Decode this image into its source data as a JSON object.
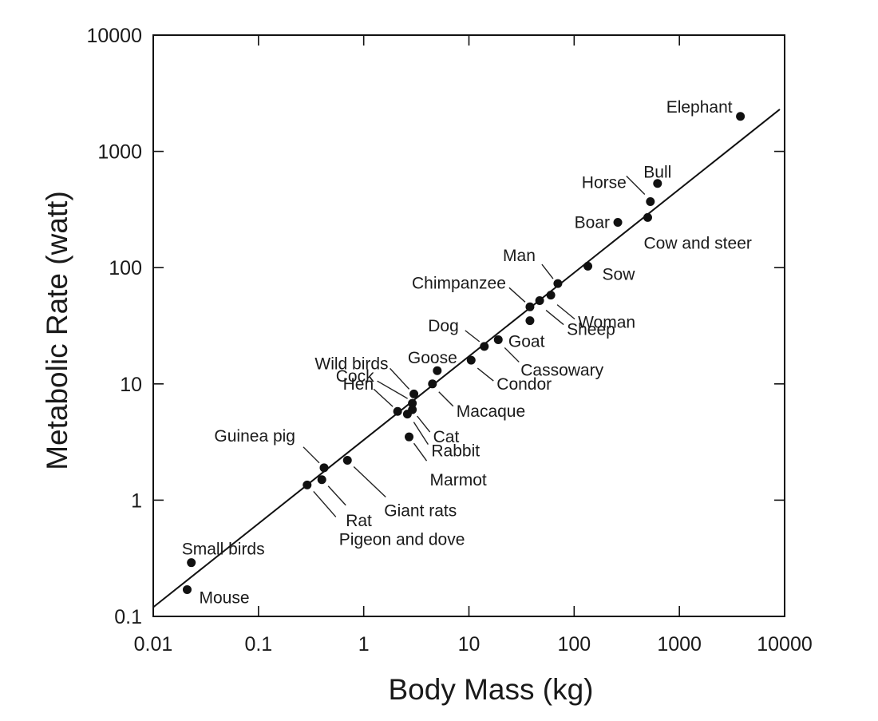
{
  "chart_data": {
    "type": "scatter",
    "title": "",
    "xlabel": "Body Mass (kg)",
    "ylabel": "Metabolic Rate (watt)",
    "x_scale": "log",
    "y_scale": "log",
    "xlim": [
      0.01,
      10000
    ],
    "ylim": [
      0.1,
      10000
    ],
    "grid": false,
    "x_ticks": [
      "0.01",
      "0.1",
      "1",
      "10",
      "100",
      "1000",
      "10000"
    ],
    "y_ticks": [
      "0.1",
      "1",
      "10",
      "100",
      "1000",
      "10000"
    ],
    "fit_line": {
      "x": [
        0.01,
        9000
      ],
      "y": [
        0.12,
        2300
      ]
    },
    "points": [
      {
        "label": "Elephant",
        "x": 3800,
        "y": 2000
      },
      {
        "label": "Bull",
        "x": 620,
        "y": 530
      },
      {
        "label": "Horse",
        "x": 530,
        "y": 370
      },
      {
        "label": "Cow and steer",
        "x": 500,
        "y": 270
      },
      {
        "label": "Boar",
        "x": 260,
        "y": 245
      },
      {
        "label": "Sow",
        "x": 135,
        "y": 103
      },
      {
        "label": "Man",
        "x": 70,
        "y": 73
      },
      {
        "label": "Woman",
        "x": 60,
        "y": 58
      },
      {
        "label": "Sheep",
        "x": 47,
        "y": 52
      },
      {
        "label": "Chimpanzee",
        "x": 38,
        "y": 46
      },
      {
        "label": "Goat",
        "x": 38,
        "y": 35
      },
      {
        "label": "Cassowary",
        "x": 19,
        "y": 24
      },
      {
        "label": "Dog",
        "x": 14,
        "y": 21
      },
      {
        "label": "Condor",
        "x": 10.5,
        "y": 16
      },
      {
        "label": "Goose",
        "x": 5,
        "y": 13
      },
      {
        "label": "Macaque",
        "x": 4.5,
        "y": 10
      },
      {
        "label": "Wild birds",
        "x": 3,
        "y": 8.2
      },
      {
        "label": "Cock",
        "x": 2.9,
        "y": 6.8
      },
      {
        "label": "Cat",
        "x": 2.9,
        "y": 6.0
      },
      {
        "label": "Hen",
        "x": 2.1,
        "y": 5.8
      },
      {
        "label": "Rabbit",
        "x": 2.6,
        "y": 5.5
      },
      {
        "label": "Marmot",
        "x": 2.7,
        "y": 3.5
      },
      {
        "label": "Giant rats",
        "x": 0.7,
        "y": 2.2
      },
      {
        "label": "Guinea pig",
        "x": 0.42,
        "y": 1.9
      },
      {
        "label": "Rat",
        "x": 0.4,
        "y": 1.5
      },
      {
        "label": "Pigeon and dove",
        "x": 0.29,
        "y": 1.35
      },
      {
        "label": "Small birds",
        "x": 0.023,
        "y": 0.29
      },
      {
        "label": "Mouse",
        "x": 0.021,
        "y": 0.17
      }
    ]
  }
}
